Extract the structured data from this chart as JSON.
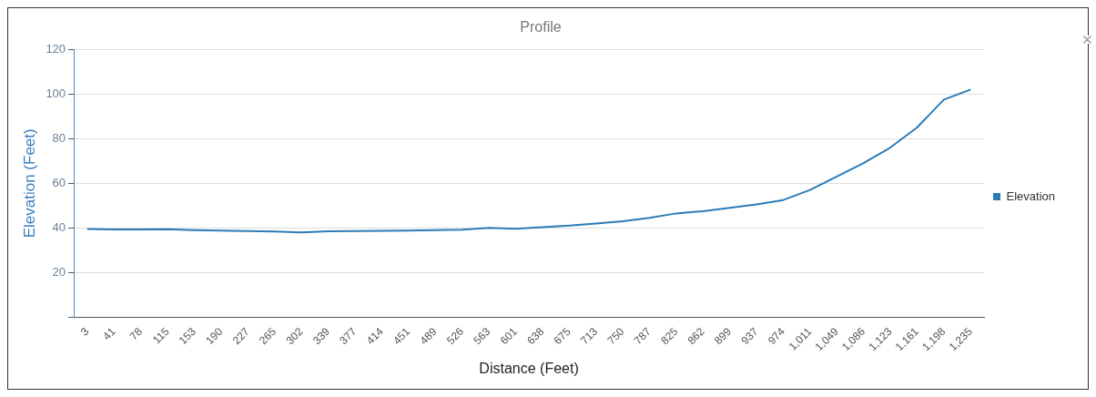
{
  "chart_data": {
    "type": "line",
    "title": "Profile",
    "xlabel": "Distance (Feet)",
    "ylabel": "Elevation (Feet)",
    "categories": [
      "3",
      "41",
      "78",
      "115",
      "153",
      "190",
      "227",
      "265",
      "302",
      "339",
      "377",
      "414",
      "451",
      "489",
      "526",
      "563",
      "601",
      "638",
      "675",
      "713",
      "750",
      "787",
      "825",
      "862",
      "899",
      "937",
      "974",
      "1,011",
      "1,049",
      "1,086",
      "1,123",
      "1,161",
      "1,198",
      "1,235"
    ],
    "series": [
      {
        "name": "Elevation",
        "color": "#2c7bb6",
        "values": [
          39.5,
          39.3,
          39.3,
          39.4,
          39,
          38.8,
          38.6,
          38.4,
          38,
          38.5,
          38.6,
          38.7,
          38.8,
          39,
          39.2,
          40,
          39.6,
          40.3,
          41,
          42,
          43,
          44.5,
          46.5,
          47.5,
          49,
          50.5,
          52.5,
          57,
          63,
          69,
          76,
          85,
          97.5,
          102
        ]
      }
    ],
    "ylim": [
      0,
      120
    ],
    "yticks": [
      {
        "value": 0,
        "label": null
      },
      20,
      40,
      60,
      80,
      100,
      120
    ],
    "grid": "y",
    "legend": "right",
    "marker": "none",
    "line_style": "solid"
  }
}
